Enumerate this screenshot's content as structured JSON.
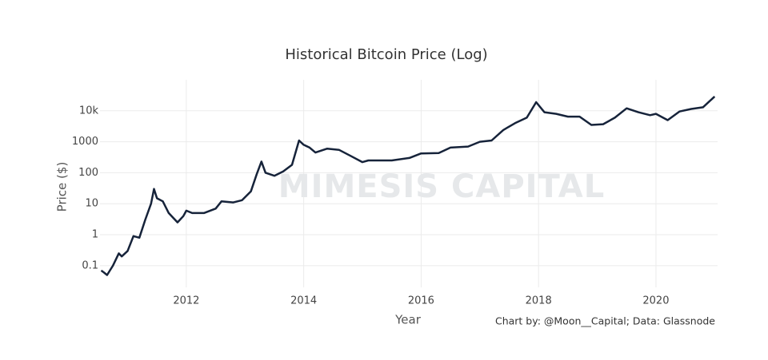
{
  "chart_data": {
    "type": "line",
    "title": "Historical Bitcoin Price (Log)",
    "x_label": "Year",
    "y_label": "Price ($)",
    "annotation": "Chart by: @Moon__Capital; Data: Glassnode",
    "watermark": "MIMESIS CAPITAL",
    "log_y": true,
    "grid": true,
    "color": "#16233a",
    "xlim": [
      2010.53,
      2021.05
    ],
    "xticks": [
      2012,
      2014,
      2016,
      2018,
      2020
    ],
    "ylim": [
      0.02,
      100000
    ],
    "yticks": [
      0.1,
      1,
      10,
      100,
      1000,
      {
        "value": 10000,
        "label": "10k"
      }
    ],
    "x": [
      2010.55,
      2010.6,
      2010.65,
      2010.75,
      2010.85,
      2010.9,
      2011.0,
      2011.1,
      2011.2,
      2011.3,
      2011.4,
      2011.45,
      2011.5,
      2011.6,
      2011.7,
      2011.85,
      2011.95,
      2012.0,
      2012.1,
      2012.3,
      2012.5,
      2012.6,
      2012.8,
      2012.95,
      2013.1,
      2013.2,
      2013.28,
      2013.35,
      2013.5,
      2013.65,
      2013.8,
      2013.92,
      2014.0,
      2014.1,
      2014.2,
      2014.4,
      2014.6,
      2014.8,
      2015.0,
      2015.1,
      2015.5,
      2015.8,
      2016.0,
      2016.3,
      2016.5,
      2016.8,
      2017.0,
      2017.2,
      2017.4,
      2017.6,
      2017.8,
      2017.96,
      2018.1,
      2018.3,
      2018.5,
      2018.7,
      2018.9,
      2019.1,
      2019.3,
      2019.5,
      2019.7,
      2019.9,
      2020.0,
      2020.2,
      2020.4,
      2020.6,
      2020.8,
      2021.0
    ],
    "values": [
      0.07,
      0.06,
      0.05,
      0.1,
      0.25,
      0.2,
      0.3,
      0.9,
      0.8,
      3,
      10,
      30,
      15,
      12,
      5,
      2.5,
      4,
      6,
      5,
      5,
      7,
      12,
      11,
      13,
      25,
      90,
      230,
      100,
      80,
      110,
      180,
      1100,
      800,
      650,
      450,
      600,
      550,
      350,
      220,
      250,
      250,
      300,
      420,
      430,
      650,
      700,
      1000,
      1100,
      2400,
      4000,
      6000,
      19000,
      9000,
      8000,
      6500,
      6500,
      3500,
      3700,
      6000,
      12000,
      9000,
      7200,
      8000,
      5000,
      9500,
      11500,
      13000,
      29000
    ]
  }
}
